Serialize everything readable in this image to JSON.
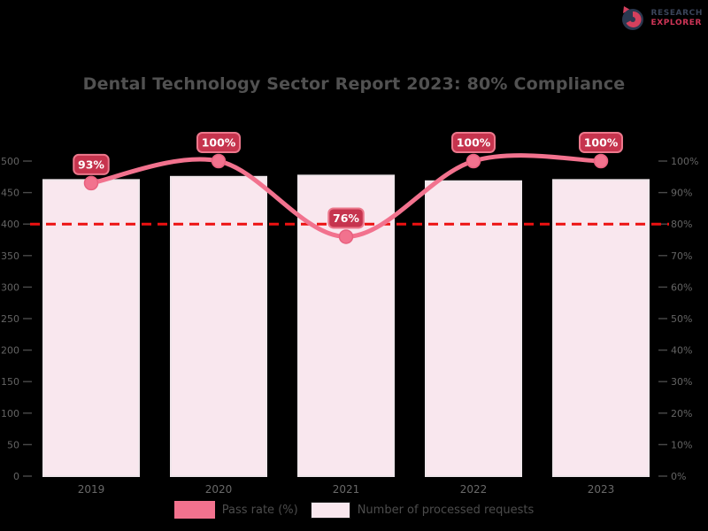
{
  "logo": {
    "line1": "RESEARCH",
    "line2": "EXPLORER"
  },
  "colors": {
    "background": "#000000",
    "bar_fill": "#f9e7ee",
    "bar_edge": "#efe6ea",
    "line": "#f2728e",
    "marker_edge": "#e8607e",
    "point_label_fill": "#c6344e",
    "point_label_edge": "#ec788c",
    "point_label_text": "#ffffff",
    "threshold": "#ed1111",
    "tick_text": "#646464",
    "tick_mark": "#4a4a4a",
    "category_text": "#686868",
    "title_text": "#515151"
  },
  "chart_data": {
    "type": "bar",
    "title": "Dental Technology Sector Report 2023: 80% Compliance",
    "categories": [
      "2019",
      "2020",
      "2021",
      "2022",
      "2023"
    ],
    "series": [
      {
        "name": "Number of processed requests",
        "type": "bar",
        "axis": "left",
        "values": [
          470,
          475,
          477,
          468,
          470
        ]
      },
      {
        "name": "Pass rate (%)",
        "type": "line",
        "axis": "right",
        "values": [
          93,
          100,
          76,
          100,
          100
        ],
        "point_labels": [
          "93%",
          "100%",
          "76%",
          "100%",
          "100%"
        ]
      }
    ],
    "left_axis": {
      "min": 0,
      "max": 500,
      "step": 50,
      "tick_labels": [
        "0",
        "50",
        "100",
        "150",
        "200",
        "250",
        "300",
        "350",
        "400",
        "450",
        "500"
      ]
    },
    "right_axis": {
      "min": 0,
      "max": 100,
      "step": 10,
      "tick_labels": [
        "0%",
        "10%",
        "20%",
        "30%",
        "40%",
        "50%",
        "60%",
        "70%",
        "80%",
        "90%",
        "100%"
      ]
    },
    "threshold": {
      "value": 80,
      "style": "dashed"
    },
    "legend": [
      {
        "label": "Pass rate (%)",
        "swatch": "solid"
      },
      {
        "label": "Number of processed requests",
        "swatch": "light"
      }
    ],
    "grid": false,
    "legend_position": "bottom-center"
  }
}
